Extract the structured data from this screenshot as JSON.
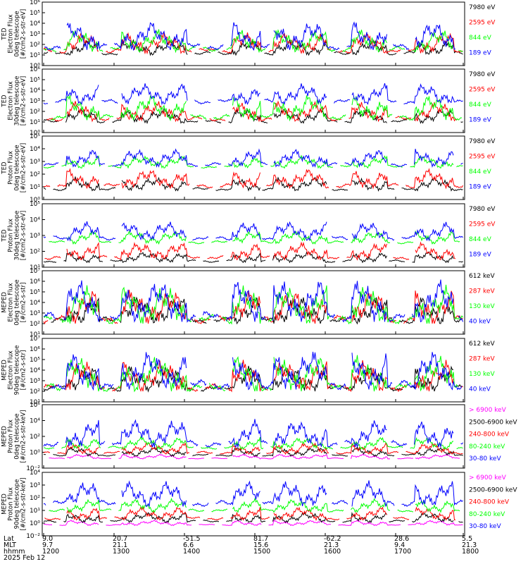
{
  "footer": {
    "rows": [
      {
        "label": "Lat",
        "values": [
          "9.0",
          "20.7",
          "-51.5",
          "81.7",
          "-62.2",
          "28.6",
          "5.5"
        ]
      },
      {
        "label": "MLT",
        "values": [
          "9.7",
          "21.1",
          "6.6",
          "15.6",
          "21.3",
          "9.4",
          "21.3"
        ]
      },
      {
        "label": "hhmm",
        "values": [
          "1200",
          "1300",
          "1400",
          "1500",
          "1600",
          "1700",
          "1800"
        ]
      }
    ],
    "date": "2025 Feb 12"
  },
  "chart_data": [
    {
      "type": "line",
      "log_y": true,
      "ylim": [
        1,
        1000000
      ],
      "ylabel": [
        "TED",
        "Electron Flux",
        "0deg telescope",
        "[#/cm2-s-str-eV]"
      ],
      "yticks": [
        "10⁰",
        "10¹",
        "10²",
        "10³",
        "10⁴",
        "10⁵",
        "10⁶"
      ],
      "series": [
        {
          "name": "7980 eV",
          "color": "#000000",
          "base": 10,
          "peak": 300
        },
        {
          "name": "2595 eV",
          "color": "#ff0000",
          "base": 15,
          "peak": 1500
        },
        {
          "name": "844 eV",
          "color": "#00ff00",
          "base": 20,
          "peak": 3000
        },
        {
          "name": "189 eV",
          "color": "#0000ff",
          "base": 30,
          "peak": 20000
        }
      ]
    },
    {
      "type": "line",
      "log_y": true,
      "ylim": [
        1,
        1000000
      ],
      "ylabel": [
        "TED",
        "Electron Flux",
        "30deg telescope",
        "[#/cm2-s-str-eV]"
      ],
      "yticks": [
        "10⁰",
        "10¹",
        "10²",
        "10³",
        "10⁴",
        "10⁵",
        "10⁶"
      ],
      "series": [
        {
          "name": "7980 eV",
          "color": "#000000",
          "base": 8,
          "peak": 200
        },
        {
          "name": "2595 eV",
          "color": "#ff0000",
          "base": 12,
          "peak": 1000
        },
        {
          "name": "844 eV",
          "color": "#00ff00",
          "base": 15,
          "peak": 5000
        },
        {
          "name": "189 eV",
          "color": "#0000ff",
          "base": 500,
          "peak": 50000
        }
      ]
    },
    {
      "type": "line",
      "log_y": true,
      "ylim": [
        1,
        100000
      ],
      "ylabel": [
        "TED",
        "Proton Flux",
        "0deg telescope",
        "[#/cm2-s-str-eV]"
      ],
      "yticks": [
        "10⁰",
        "10¹",
        "10²",
        "10³",
        "10⁴",
        "10⁵"
      ],
      "series": [
        {
          "name": "7980 eV",
          "color": "#000000",
          "base": 5,
          "peak": 60
        },
        {
          "name": "2595 eV",
          "color": "#ff0000",
          "base": 8,
          "peak": 300
        },
        {
          "name": "844 eV",
          "color": "#00ff00",
          "base": 300,
          "peak": 3000
        },
        {
          "name": "189 eV",
          "color": "#0000ff",
          "base": 400,
          "peak": 10000
        }
      ]
    },
    {
      "type": "line",
      "log_y": true,
      "ylim": [
        10,
        100000
      ],
      "ylabel": [
        "TED",
        "Proton Flux",
        "30deg telescope",
        "[#/cm2-s-str-eV]"
      ],
      "yticks": [
        "10¹",
        "10²",
        "10³",
        "10⁴",
        "10⁵"
      ],
      "series": [
        {
          "name": "7980 eV",
          "color": "#000000",
          "base": 20,
          "peak": 100
        },
        {
          "name": "2595 eV",
          "color": "#ff0000",
          "base": 30,
          "peak": 400
        },
        {
          "name": "844 eV",
          "color": "#00ff00",
          "base": 300,
          "peak": 2000
        },
        {
          "name": "189 eV",
          "color": "#0000ff",
          "base": 500,
          "peak": 8000
        }
      ]
    },
    {
      "type": "line",
      "log_y": true,
      "ylim": [
        10,
        10000000
      ],
      "ylabel": [
        "MEPED",
        "Electron Flux",
        "0deg telescope",
        "[#/cm2-s-str]"
      ],
      "yticks": [
        "10¹",
        "10²",
        "10³",
        "10⁴",
        "10⁵",
        "10⁶",
        "10⁷"
      ],
      "series": [
        {
          "name": "612 keV",
          "color": "#000000",
          "base": 100,
          "peak": 50000
        },
        {
          "name": "287 keV",
          "color": "#ff0000",
          "base": 100,
          "peak": 200000
        },
        {
          "name": "130 keV",
          "color": "#00ff00",
          "base": 100,
          "peak": 500000
        },
        {
          "name": "40 keV",
          "color": "#0000ff",
          "base": 150,
          "peak": 2000000
        }
      ]
    },
    {
      "type": "line",
      "log_y": true,
      "ylim": [
        10,
        10000000
      ],
      "ylabel": [
        "MEPED",
        "Electron Flux",
        "90deg telescope",
        "[#/cm2-s-str]"
      ],
      "yticks": [
        "10¹",
        "10²",
        "10³",
        "10⁴",
        "10⁵",
        "10⁶",
        "10⁷"
      ],
      "series": [
        {
          "name": "612 keV",
          "color": "#000000",
          "base": 100,
          "peak": 30000
        },
        {
          "name": "287 keV",
          "color": "#ff0000",
          "base": 100,
          "peak": 100000
        },
        {
          "name": "130 keV",
          "color": "#00ff00",
          "base": 100,
          "peak": 300000
        },
        {
          "name": "40 keV",
          "color": "#0000ff",
          "base": 150,
          "peak": 1000000
        }
      ]
    },
    {
      "type": "line",
      "log_y": true,
      "ylim": [
        0.001,
        1000000
      ],
      "ylabel": [
        "MEPED",
        "Proton Flux",
        "0deg telescope",
        "[#/cm2-s-str-keV]"
      ],
      "yticks": [
        "10⁻²",
        "10⁰",
        "10²",
        "10⁴",
        "10⁶"
      ],
      "series": [
        {
          "name": "> 6900 keV",
          "color": "#ff00ff",
          "base": 0.02,
          "peak": 0.1
        },
        {
          "name": "2500-6900 keV",
          "color": "#000000",
          "base": 0.05,
          "peak": 1
        },
        {
          "name": "240-800 keV",
          "color": "#ff0000",
          "base": 0.1,
          "peak": 5
        },
        {
          "name": "80-240 keV",
          "color": "#00ff00",
          "base": 0.5,
          "peak": 30
        },
        {
          "name": "30-80 keV",
          "color": "#0000ff",
          "base": 1,
          "peak": 10000
        }
      ]
    },
    {
      "type": "line",
      "log_y": true,
      "ylim": [
        0.001,
        100000
      ],
      "ylabel": [
        "MEPED",
        "Proton Flux",
        "90deg telescope",
        "[#/cm2-s-str-keV]"
      ],
      "yticks": [
        "10⁻²",
        "10⁰",
        "10¹",
        "10²",
        "10³",
        "10⁴"
      ],
      "series": [
        {
          "name": "> 6900 keV",
          "color": "#ff00ff",
          "base": 0.02,
          "peak": 0.1
        },
        {
          "name": "2500-6900 keV",
          "color": "#000000",
          "base": 0.05,
          "peak": 1
        },
        {
          "name": "240-800 keV",
          "color": "#ff0000",
          "base": 0.1,
          "peak": 5
        },
        {
          "name": "80-240 keV",
          "color": "#00ff00",
          "base": 1,
          "peak": 50
        },
        {
          "name": "30-80 keV",
          "color": "#0000ff",
          "base": 5,
          "peak": 10000
        }
      ]
    }
  ]
}
